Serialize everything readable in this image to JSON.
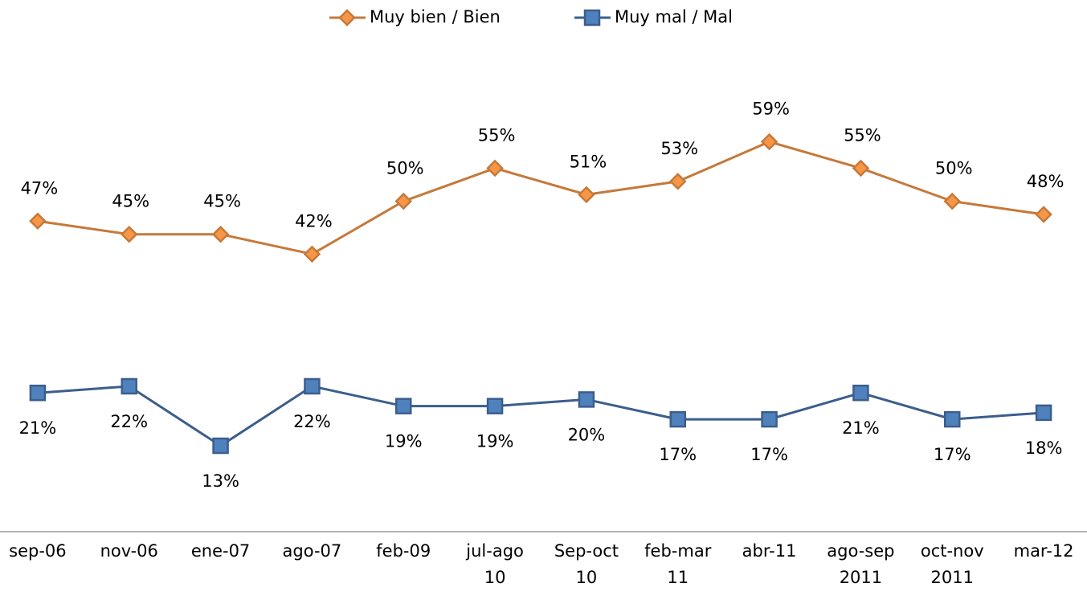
{
  "chart_data": {
    "type": "line",
    "categories": [
      "sep-06",
      "nov-06",
      "ene-07",
      "ago-07",
      "feb-09",
      "jul-ago 10",
      "Sep-oct 10",
      "feb-mar 11",
      "abr-11",
      "ago-sep 2011",
      "oct-nov 2011",
      "mar-12"
    ],
    "series": [
      {
        "name": "Muy bien / Bien",
        "color": "#c5793a",
        "marker_color": "#f79646",
        "marker": "diamond",
        "values": [
          47,
          45,
          45,
          42,
          50,
          55,
          51,
          53,
          59,
          55,
          50,
          48
        ],
        "value_labels": [
          "47%",
          "45%",
          "45%",
          "42%",
          "50%",
          "55%",
          "51%",
          "53%",
          "59%",
          "55%",
          "50%",
          "48%"
        ]
      },
      {
        "name": "Muy mal / Mal",
        "color": "#3b5e8c",
        "marker_color": "#4f81bd",
        "marker": "square",
        "values": [
          21,
          22,
          13,
          22,
          19,
          19,
          20,
          17,
          17,
          21,
          17,
          18
        ],
        "value_labels": [
          "21%",
          "22%",
          "13%",
          "22%",
          "19%",
          "19%",
          "20%",
          "17%",
          "17%",
          "21%",
          "17%",
          "18%"
        ]
      }
    ],
    "ylim": [
      0,
      70
    ]
  }
}
